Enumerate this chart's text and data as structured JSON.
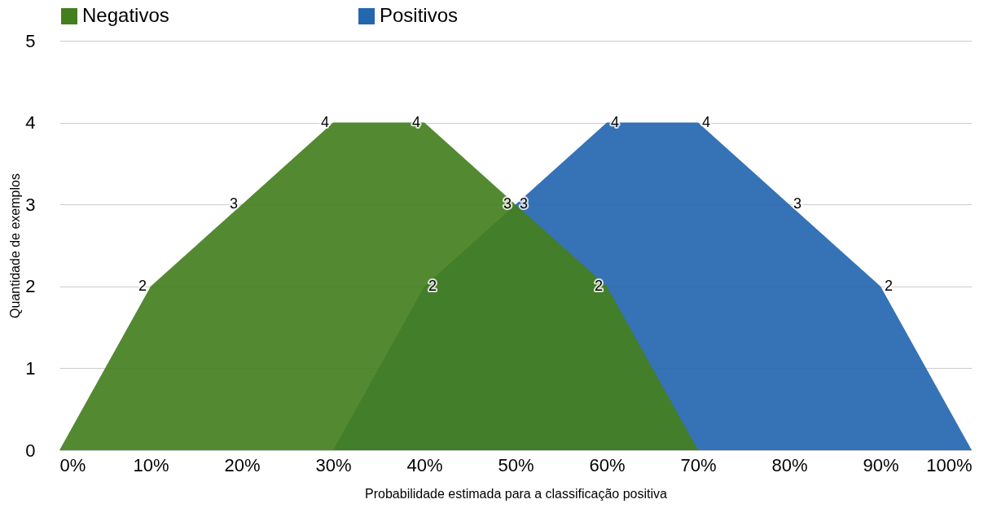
{
  "chart_data": {
    "type": "area",
    "xlabel": "Probabilidade estimada para a classificação positiva",
    "ylabel": "Quantidade de exemplos",
    "xlim": [
      0,
      100
    ],
    "xticks": [
      {
        "value": 0,
        "label": "0%"
      },
      {
        "value": 10,
        "label": "10%"
      },
      {
        "value": 20,
        "label": "20%"
      },
      {
        "value": 30,
        "label": "30%"
      },
      {
        "value": 40,
        "label": "40%"
      },
      {
        "value": 50,
        "label": "50%"
      },
      {
        "value": 60,
        "label": "60%"
      },
      {
        "value": 70,
        "label": "70%"
      },
      {
        "value": 80,
        "label": "80%"
      },
      {
        "value": 90,
        "label": "90%"
      },
      {
        "value": 100,
        "label": "100%"
      }
    ],
    "ylim": [
      0,
      5
    ],
    "yticks": [
      0,
      1,
      2,
      3,
      4,
      5
    ],
    "grid": "y",
    "legend": "top",
    "series": [
      {
        "name": "Negativos",
        "color": "#447f1f",
        "x": [
          0,
          10,
          20,
          30,
          40,
          50,
          60,
          70
        ],
        "values": [
          0,
          2,
          3,
          4,
          4,
          3,
          2,
          0
        ],
        "value_labels": [
          null,
          "2",
          "3",
          "4",
          "4",
          "3",
          "2",
          null
        ]
      },
      {
        "name": "Positivos",
        "color": "#2566b0",
        "x": [
          30,
          40,
          50,
          60,
          70,
          80,
          90,
          100
        ],
        "values": [
          0,
          2,
          3,
          4,
          4,
          3,
          2,
          0
        ],
        "value_labels": [
          null,
          "2",
          "3",
          "4",
          "4",
          "3",
          "2",
          null
        ]
      }
    ]
  }
}
